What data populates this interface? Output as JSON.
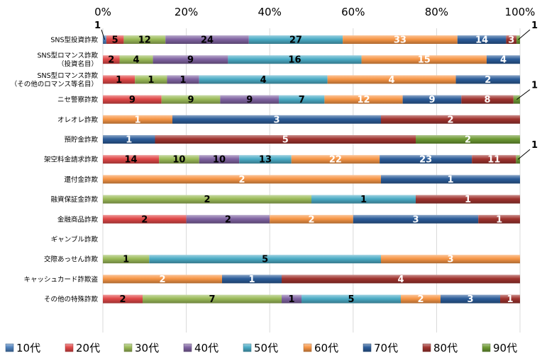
{
  "chart_data": {
    "type": "bar",
    "orientation": "horizontal",
    "stacked": "percent",
    "title": "",
    "xlabel": "",
    "ylabel": "",
    "xlim": [
      0,
      100
    ],
    "x_ticks": [
      "0%",
      "20%",
      "40%",
      "60%",
      "80%",
      "100%"
    ],
    "grid": true,
    "legend_position": "bottom",
    "categories": [
      "SNS型投資詐欺",
      "SNS型ロマンス詐欺\n（投資名目）",
      "SNS型ロマンス詐欺\n（その他のロマンス等名目）",
      "ニセ警察詐欺",
      "オレオレ詐欺",
      "預貯金詐欺",
      "架空料金請求詐欺",
      "還付金詐欺",
      "融資保証金詐欺",
      "金融商品詐欺",
      "ギャンブル詐欺",
      "交際あっせん詐欺",
      "キャッシュカード詐欺盗",
      "その他の特殊詐欺"
    ],
    "series": [
      {
        "name": "10代",
        "color": "#4F81BD",
        "values": [
          1,
          0,
          0,
          0,
          0,
          0,
          0,
          0,
          0,
          0,
          0,
          0,
          0,
          0
        ]
      },
      {
        "name": "20代",
        "color": "#E04848",
        "values": [
          5,
          2,
          1,
          9,
          0,
          0,
          14,
          0,
          0,
          2,
          0,
          0,
          0,
          2
        ]
      },
      {
        "name": "30代",
        "color": "#9BBB59",
        "values": [
          12,
          4,
          1,
          9,
          0,
          0,
          10,
          0,
          2,
          0,
          0,
          1,
          0,
          7
        ]
      },
      {
        "name": "40代",
        "color": "#8064A2",
        "values": [
          24,
          9,
          1,
          9,
          0,
          0,
          10,
          0,
          0,
          2,
          0,
          0,
          0,
          1
        ]
      },
      {
        "name": "50代",
        "color": "#4BACC6",
        "values": [
          27,
          16,
          4,
          7,
          0,
          0,
          13,
          0,
          1,
          0,
          0,
          5,
          0,
          5
        ]
      },
      {
        "name": "60代",
        "color": "#F79646",
        "values": [
          33,
          15,
          4,
          12,
          1,
          0,
          22,
          2,
          0,
          2,
          0,
          3,
          2,
          2
        ]
      },
      {
        "name": "70代",
        "color": "#2C5D9A",
        "values": [
          14,
          4,
          2,
          9,
          3,
          1,
          23,
          1,
          0,
          3,
          0,
          0,
          1,
          3
        ]
      },
      {
        "name": "80代",
        "color": "#A0342F",
        "values": [
          3,
          0,
          0,
          8,
          2,
          5,
          11,
          0,
          1,
          1,
          0,
          0,
          4,
          1
        ]
      },
      {
        "name": "90代",
        "color": "#6E9A34",
        "values": [
          1,
          0,
          0,
          1,
          0,
          2,
          1,
          0,
          0,
          0,
          0,
          0,
          0,
          0
        ]
      }
    ]
  }
}
